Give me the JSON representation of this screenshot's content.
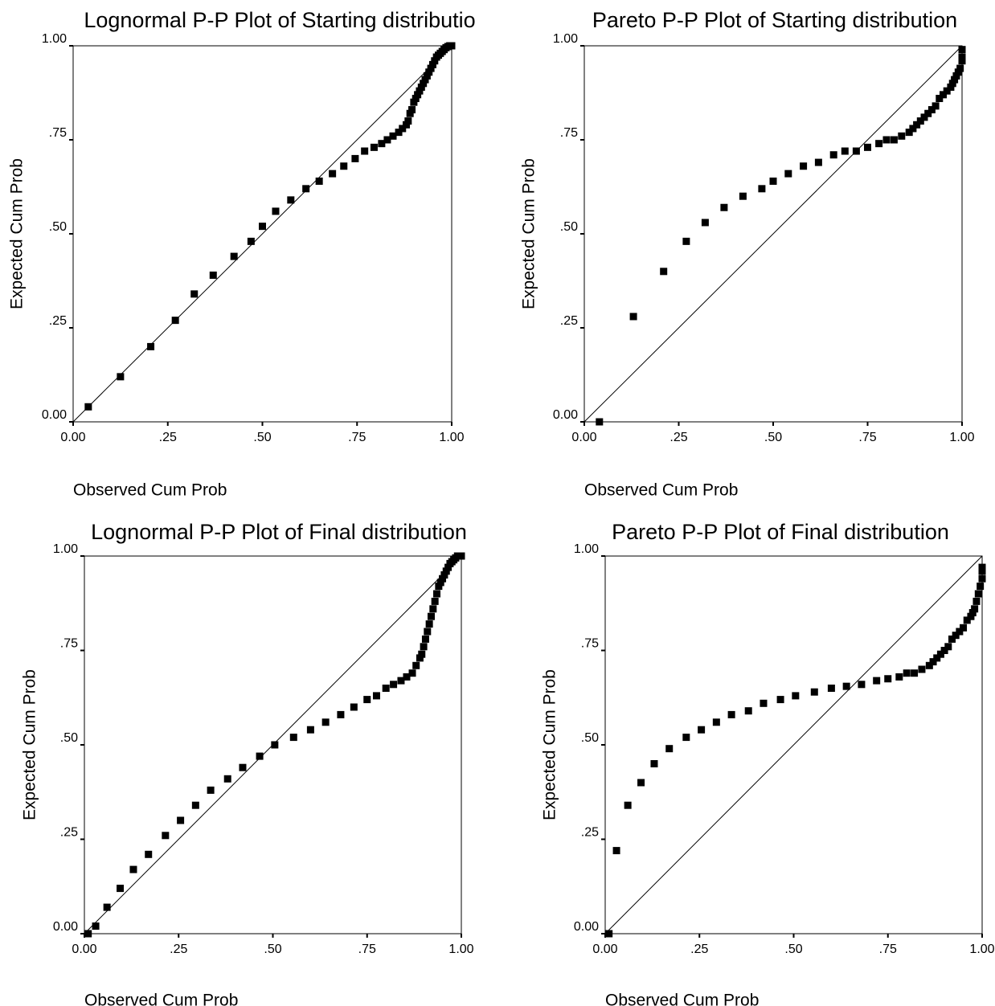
{
  "tick_labels": [
    "0.00",
    ".25",
    ".50",
    ".75",
    "1.00"
  ],
  "chart_data": [
    {
      "type": "scatter",
      "title": "Lognormal P-P Plot of Starting distributio",
      "xlabel": "Observed Cum Prob",
      "ylabel": "Expected Cum Prob",
      "xlim": [
        0,
        1
      ],
      "ylim": [
        0,
        1
      ],
      "reference_line": [
        [
          0,
          0
        ],
        [
          1,
          1
        ]
      ],
      "x": [
        0.04,
        0.125,
        0.205,
        0.27,
        0.32,
        0.37,
        0.425,
        0.47,
        0.5,
        0.535,
        0.575,
        0.615,
        0.65,
        0.685,
        0.715,
        0.745,
        0.77,
        0.795,
        0.815,
        0.83,
        0.845,
        0.86,
        0.87,
        0.88,
        0.885,
        0.89,
        0.895,
        0.9,
        0.905,
        0.91,
        0.915,
        0.92,
        0.925,
        0.93,
        0.935,
        0.94,
        0.945,
        0.95,
        0.955,
        0.96,
        0.965,
        0.97,
        0.975,
        0.98,
        0.985,
        0.99,
        0.995,
        1.0
      ],
      "y": [
        0.04,
        0.12,
        0.2,
        0.27,
        0.34,
        0.39,
        0.44,
        0.48,
        0.52,
        0.56,
        0.59,
        0.62,
        0.64,
        0.66,
        0.68,
        0.7,
        0.72,
        0.73,
        0.74,
        0.75,
        0.76,
        0.77,
        0.78,
        0.79,
        0.8,
        0.82,
        0.83,
        0.85,
        0.86,
        0.87,
        0.88,
        0.89,
        0.9,
        0.91,
        0.92,
        0.93,
        0.94,
        0.95,
        0.96,
        0.97,
        0.975,
        0.98,
        0.985,
        0.99,
        0.995,
        0.998,
        1.0,
        1.0
      ]
    },
    {
      "type": "scatter",
      "title": "Pareto P-P Plot of Starting distribution",
      "xlabel": "Observed Cum Prob",
      "ylabel": "Expected Cum Prob",
      "xlim": [
        0,
        1
      ],
      "ylim": [
        0,
        1
      ],
      "reference_line": [
        [
          0,
          0
        ],
        [
          1,
          1
        ]
      ],
      "x": [
        0.04,
        0.13,
        0.21,
        0.27,
        0.32,
        0.37,
        0.42,
        0.47,
        0.5,
        0.54,
        0.58,
        0.62,
        0.66,
        0.69,
        0.72,
        0.75,
        0.78,
        0.8,
        0.82,
        0.84,
        0.86,
        0.87,
        0.88,
        0.89,
        0.9,
        0.91,
        0.92,
        0.93,
        0.94,
        0.95,
        0.96,
        0.97,
        0.975,
        0.98,
        0.985,
        0.99,
        0.995,
        1.0,
        1.0,
        1.0
      ],
      "y": [
        0.0,
        0.28,
        0.4,
        0.48,
        0.53,
        0.57,
        0.6,
        0.62,
        0.64,
        0.66,
        0.68,
        0.69,
        0.71,
        0.72,
        0.72,
        0.73,
        0.74,
        0.75,
        0.75,
        0.76,
        0.77,
        0.78,
        0.79,
        0.8,
        0.81,
        0.82,
        0.83,
        0.84,
        0.86,
        0.87,
        0.88,
        0.89,
        0.9,
        0.91,
        0.92,
        0.93,
        0.94,
        0.96,
        0.97,
        0.99
      ]
    },
    {
      "type": "scatter",
      "title": "Lognormal P-P Plot of Final distribution",
      "xlabel": "Observed Cum Prob",
      "ylabel": "Expected Cum Prob",
      "xlim": [
        0,
        1
      ],
      "ylim": [
        0,
        1
      ],
      "reference_line": [
        [
          0,
          0
        ],
        [
          1,
          1
        ]
      ],
      "x": [
        0.01,
        0.03,
        0.06,
        0.095,
        0.13,
        0.17,
        0.215,
        0.255,
        0.295,
        0.335,
        0.38,
        0.42,
        0.465,
        0.505,
        0.555,
        0.6,
        0.64,
        0.68,
        0.715,
        0.75,
        0.775,
        0.8,
        0.82,
        0.84,
        0.855,
        0.87,
        0.88,
        0.89,
        0.895,
        0.9,
        0.905,
        0.91,
        0.915,
        0.92,
        0.925,
        0.93,
        0.935,
        0.94,
        0.945,
        0.95,
        0.955,
        0.96,
        0.965,
        0.97,
        0.975,
        0.98,
        0.985,
        0.99,
        0.995,
        1.0
      ],
      "y": [
        0.0,
        0.02,
        0.07,
        0.12,
        0.17,
        0.21,
        0.26,
        0.3,
        0.34,
        0.38,
        0.41,
        0.44,
        0.47,
        0.5,
        0.52,
        0.54,
        0.56,
        0.58,
        0.6,
        0.62,
        0.63,
        0.65,
        0.66,
        0.67,
        0.68,
        0.69,
        0.71,
        0.73,
        0.74,
        0.76,
        0.78,
        0.8,
        0.82,
        0.84,
        0.86,
        0.88,
        0.9,
        0.92,
        0.93,
        0.94,
        0.95,
        0.96,
        0.97,
        0.98,
        0.985,
        0.99,
        0.995,
        1.0,
        1.0,
        1.0
      ]
    },
    {
      "type": "scatter",
      "title": "Pareto P-P Plot of Final distribution",
      "xlabel": "Observed Cum Prob",
      "ylabel": "Expected Cum Prob",
      "xlim": [
        0,
        1
      ],
      "ylim": [
        0,
        1
      ],
      "reference_line": [
        [
          0,
          0
        ],
        [
          1,
          1
        ]
      ],
      "x": [
        0.01,
        0.03,
        0.06,
        0.095,
        0.13,
        0.17,
        0.215,
        0.255,
        0.295,
        0.335,
        0.38,
        0.42,
        0.465,
        0.505,
        0.555,
        0.6,
        0.64,
        0.68,
        0.72,
        0.75,
        0.78,
        0.8,
        0.82,
        0.84,
        0.86,
        0.87,
        0.88,
        0.89,
        0.9,
        0.91,
        0.92,
        0.93,
        0.94,
        0.95,
        0.96,
        0.97,
        0.975,
        0.98,
        0.985,
        0.99,
        0.995,
        1.0,
        1.0,
        1.0
      ],
      "y": [
        0.0,
        0.22,
        0.34,
        0.4,
        0.45,
        0.49,
        0.52,
        0.54,
        0.56,
        0.58,
        0.59,
        0.61,
        0.62,
        0.63,
        0.64,
        0.65,
        0.655,
        0.66,
        0.67,
        0.675,
        0.68,
        0.69,
        0.69,
        0.7,
        0.71,
        0.72,
        0.73,
        0.74,
        0.75,
        0.76,
        0.78,
        0.79,
        0.8,
        0.81,
        0.83,
        0.84,
        0.85,
        0.86,
        0.88,
        0.9,
        0.92,
        0.94,
        0.96,
        0.97
      ]
    }
  ]
}
